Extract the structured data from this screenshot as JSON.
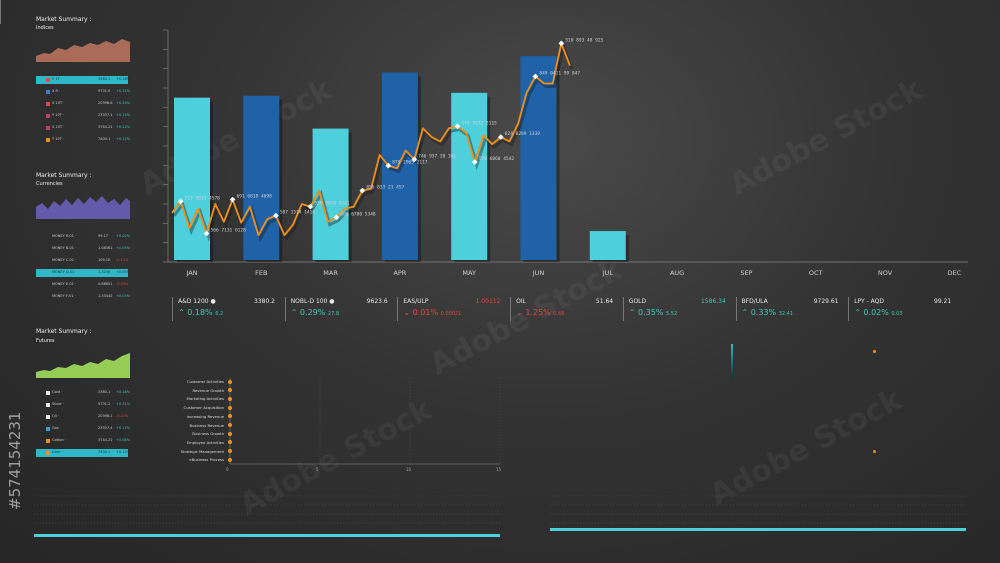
{
  "panels": [
    {
      "title": "Market Summary :",
      "subtitle": "Indices",
      "color": "#c97a63"
    },
    {
      "title": "Market Summary :",
      "subtitle": "Currencies",
      "color": "#6a5fb8"
    },
    {
      "title": "Market Summary :",
      "subtitle": "Futures",
      "color": "#9bd65a"
    }
  ],
  "indices_rows": [
    {
      "name": "S 1T ·",
      "value": "3380.1",
      "change": "+0.18%",
      "color": "#e64545",
      "highlight": true
    },
    {
      "name": "X R ·",
      "value": "9731.0",
      "change": "+0.21%",
      "color": "#3a7bd5",
      "highlight": false
    },
    {
      "name": "X 10T ·",
      "value": "20398.6",
      "change": "+0.34%",
      "color": "#e64545",
      "highlight": false
    },
    {
      "name": "Y 10T ·",
      "value": "23337.1",
      "change": "+0.15%",
      "color": "#c0406a",
      "highlight": false
    },
    {
      "name": "X 10T ·",
      "value": "3744.21",
      "change": "+0.22%",
      "color": "#c0406a",
      "highlight": false
    },
    {
      "name": "T 10T ·",
      "value": "7400.1",
      "change": "+0.12%",
      "color": "#f0901a",
      "highlight": false
    }
  ],
  "currency_rows": [
    {
      "name": "MONEY R-01 ·",
      "value": "99.17",
      "change": "+0.02%",
      "highlight": false
    },
    {
      "name": "MONEY B-01 ·",
      "value": "1.08361",
      "change": "+0.05%",
      "highlight": false
    },
    {
      "name": "MONEY C-01 ·",
      "value": "109.10",
      "change": "-0.11%",
      "highlight": false
    },
    {
      "name": "MONEY D-01 ·",
      "value": "1.3230",
      "change": "+0.09%",
      "highlight": true
    },
    {
      "name": "MONEY E-01 ·",
      "value": "0.66851",
      "change": "-0.04%",
      "highlight": false
    },
    {
      "name": "MONEY F-01 ·",
      "value": "1.33442",
      "change": "+0.03%",
      "highlight": false
    }
  ],
  "futures_rows": [
    {
      "name": "Gold ·",
      "value": "3380.1",
      "change": "+0.18%",
      "color": "#eeeeee",
      "highlight": false
    },
    {
      "name": "Silver ·",
      "value": "9731.2",
      "change": "+0.31%",
      "color": "#eeeeee",
      "highlight": false
    },
    {
      "name": "Oil ·",
      "value": "20398.1",
      "change": "-0.21%",
      "color": "#eeeeee",
      "highlight": false
    },
    {
      "name": "Gas ·",
      "value": "23337.4",
      "change": "+0.17%",
      "color": "#3a9bd5",
      "highlight": false
    },
    {
      "name": "Cotton ·",
      "value": "3744.21",
      "change": "+0.08%",
      "color": "#f0901a",
      "highlight": false
    },
    {
      "name": "Corn ·",
      "value": "7400.1",
      "change": "+0.12%",
      "color": "#f0901a",
      "highlight": true
    }
  ],
  "tickers": [
    {
      "name": "A&D 1200 ●",
      "value": "3380.2",
      "pct": "0.18%",
      "sub": "6.2",
      "dir": "up"
    },
    {
      "name": "NOBL-D 100 ●",
      "value": "9623.6",
      "pct": "0.29%",
      "sub": "27.8",
      "dir": "up"
    },
    {
      "name": "EAS/ULP",
      "value": "1.00112",
      "pct": "0.01%",
      "sub": "0.00021",
      "dir": "dn"
    },
    {
      "name": "OIL",
      "value": "51.64",
      "pct": "1.25%",
      "sub": "0.66",
      "dir": "dn"
    },
    {
      "name": "GOLD",
      "value": "1586.34",
      "pct": "0.35%",
      "sub": "5.52",
      "dir": "up"
    },
    {
      "name": "BFD/ULA",
      "value": "9729.61",
      "pct": "0.33%",
      "sub": "32.41",
      "dir": "up"
    },
    {
      "name": "LPY - AQD",
      "value": "99.21",
      "pct": "0.02%",
      "sub": "0.03",
      "dir": "up"
    }
  ],
  "hbar_labels": [
    "Customer Activities",
    "Revenue Growth",
    "Marketing Activities",
    "Customer Acquisition",
    "Increasing Revenue",
    "Business Revenue",
    "Business Growth",
    "Employee Activities",
    "Strategic Management",
    "eBusiness Process"
  ],
  "hbar_axis": [
    "0",
    "5",
    "10",
    "15"
  ],
  "watermark": "Adobe Stock",
  "stock_id": "#574154231",
  "chart_data": {
    "type": "bar",
    "categories": [
      "JAN",
      "FEB",
      "MAR",
      "APR",
      "MAY",
      "JUN",
      "JUL",
      "AUG",
      "SEP",
      "OCT",
      "NOV",
      "DEC"
    ],
    "values": [
      170,
      172,
      138,
      196,
      175,
      213,
      32,
      null,
      null,
      null,
      null,
      null
    ],
    "bar_colors": [
      "#4dd0dc",
      "#1f62a8",
      "#4dd0dc",
      "#1f62a8",
      "#4dd0dc",
      "#1f62a8",
      "#4dd0dc"
    ],
    "ylim": [
      0,
      240
    ],
    "line_series": {
      "color": "#f0901a",
      "values": [
        55,
        68,
        38,
        60,
        32,
        65,
        45,
        70,
        44,
        62,
        30,
        48,
        52,
        30,
        42,
        65,
        62,
        80,
        45,
        50,
        60,
        62,
        80,
        82,
        120,
        108,
        105,
        125,
        115,
        150,
        140,
        135,
        150,
        152,
        145,
        112,
        142,
        132,
        140,
        135,
        155,
        190,
        208,
        200,
        200,
        245,
        220
      ],
      "ylim": [
        0,
        260
      ]
    },
    "point_labels": [
      {
        "index": 1,
        "text": "723 9933 4578"
      },
      {
        "index": 4,
        "text": "566 7131 6128"
      },
      {
        "index": 7,
        "text": "691 6818 4698"
      },
      {
        "index": 12,
        "text": "587 1514 1410"
      },
      {
        "index": 16,
        "text": "550 8010 9251"
      },
      {
        "index": 19,
        "text": "606 6700 5348"
      },
      {
        "index": 22,
        "text": "856 833 21 457"
      },
      {
        "index": 25,
        "text": "879 2965 2117"
      },
      {
        "index": 28,
        "text": "746 937 20 381"
      },
      {
        "index": 33,
        "text": "574 5612 2115"
      },
      {
        "index": 35,
        "text": "570 6060 4542"
      },
      {
        "index": 38,
        "text": "824 8289 1339"
      },
      {
        "index": 42,
        "text": "849 0411 99 847"
      },
      {
        "index": 45,
        "text": "510 893 48 925"
      }
    ]
  }
}
